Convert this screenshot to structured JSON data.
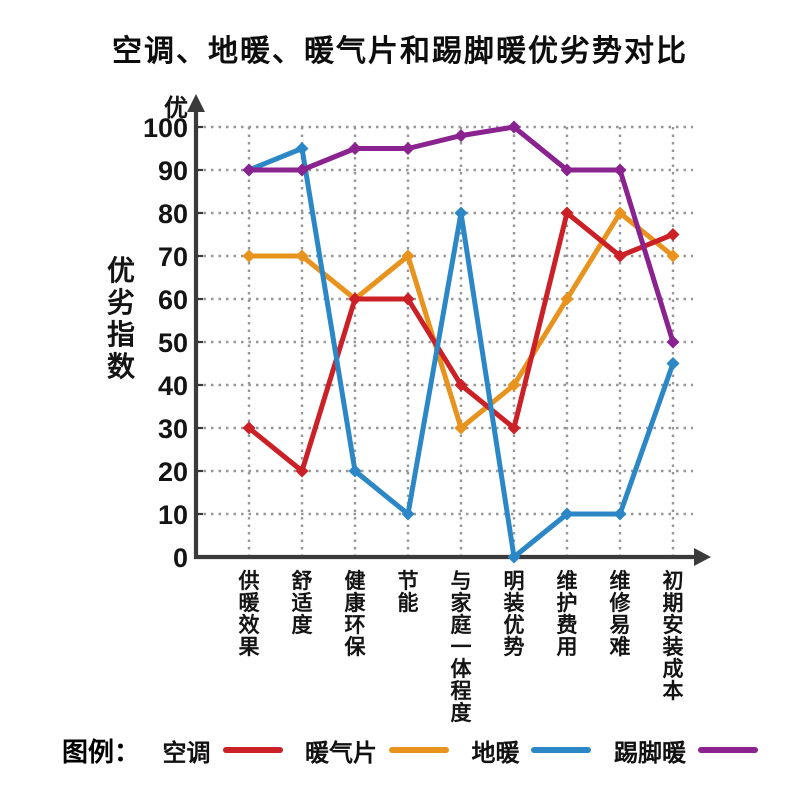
{
  "page": {
    "title": "空调、地暖、暖气片和踢脚暖优劣势对比"
  },
  "legend": {
    "title": "图例："
  },
  "chart_data": {
    "type": "line",
    "title": "空调、地暖、暖气片和踢脚暖优劣势对比",
    "categories": [
      "供暖效果",
      "舒适度",
      "健康环保",
      "节能",
      "与家庭一体程度",
      "明装优势",
      "维护费用",
      "维修易难",
      "初期安装成本"
    ],
    "series": [
      {
        "id": "air-conditioner",
        "name": "空调",
        "color": "#cc2027",
        "values": [
          30,
          20,
          60,
          60,
          40,
          30,
          80,
          70,
          75
        ]
      },
      {
        "id": "radiator",
        "name": "暖气片",
        "color": "#e8931d",
        "values": [
          70,
          70,
          60,
          70,
          30,
          40,
          60,
          80,
          70
        ]
      },
      {
        "id": "floor-heating",
        "name": "地暖",
        "color": "#2c87c6",
        "values": [
          90,
          95,
          20,
          10,
          80,
          0,
          10,
          10,
          45
        ]
      },
      {
        "id": "baseboard-heating",
        "name": "踢脚暖",
        "color": "#8a2290",
        "values": [
          90,
          90,
          95,
          95,
          98,
          100,
          90,
          90,
          50
        ]
      }
    ],
    "xlabel": "",
    "ylabel": "优劣指数",
    "y_axis_top_label": "优",
    "y_ticks": [
      0,
      10,
      20,
      30,
      40,
      50,
      60,
      70,
      80,
      90,
      100
    ],
    "ylim": [
      0,
      100
    ],
    "grid": "dotted",
    "marker": "diamond",
    "legend_position": "bottom"
  }
}
